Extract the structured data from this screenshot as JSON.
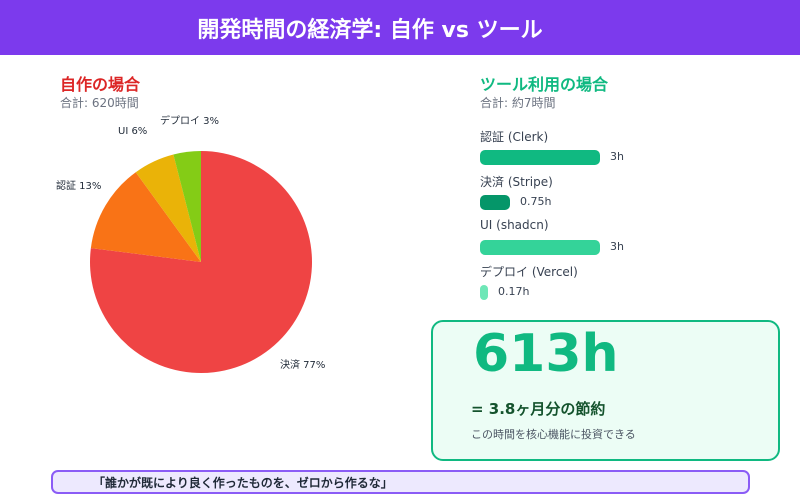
{
  "header": {
    "title": "開発時間の経済学: 自作 vs ツール"
  },
  "self_build": {
    "title": "自作の場合",
    "subtotal": "合計: 620時間"
  },
  "tools": {
    "title": "ツール利用の場合",
    "subtotal": "合計: 約7時間",
    "max_hours": 3,
    "items": [
      {
        "label": "認証 (Clerk)",
        "value": "3h",
        "hours": 3,
        "color": "#10b981"
      },
      {
        "label": "決済 (Stripe)",
        "value": "0.75h",
        "hours": 0.75,
        "color": "#059669"
      },
      {
        "label": "UI (shadcn)",
        "value": "3h",
        "hours": 3,
        "color": "#34d399"
      },
      {
        "label": "デプロイ (Vercel)",
        "value": "0.17h",
        "hours": 0.17,
        "color": "#6ee7b7"
      }
    ]
  },
  "chart_data": {
    "type": "pie",
    "slices": [
      {
        "label": "決済 77%",
        "name": "決済",
        "value": 77,
        "color": "#ef4444"
      },
      {
        "label": "認証 13%",
        "name": "認証",
        "value": 13,
        "color": "#f97316"
      },
      {
        "label": "UI 6%",
        "name": "UI",
        "value": 6,
        "color": "#eab308"
      },
      {
        "label": "デプロイ 3%",
        "name": "デプロイ",
        "value": 3,
        "color": "#84cc16"
      }
    ]
  },
  "savings": {
    "hours": "613h",
    "equivalent": "= 3.8ヶ月分の節約",
    "note": "この時間を核心機能に投資できる"
  },
  "quote": "「誰かが既により良く作ったものを、ゼロから作るな」"
}
